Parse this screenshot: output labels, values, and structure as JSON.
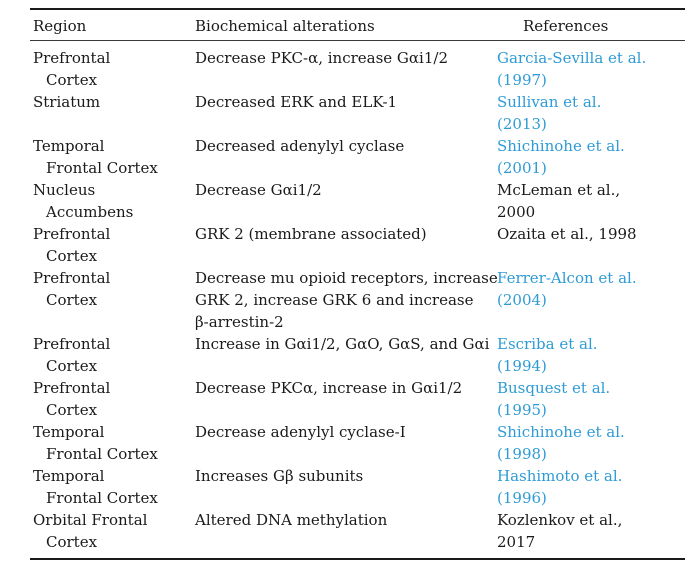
{
  "table": {
    "text_color": "#1a1a1a",
    "link_color": "#2e9bd6",
    "headers": [
      {
        "label": "Region"
      },
      {
        "label": "Biochemical alterations"
      },
      {
        "label": "References"
      }
    ],
    "rows": [
      {
        "region_lines": [
          "Prefrontal",
          "Cortex"
        ],
        "alteration_lines": [
          "Decrease PKC-α, increase Gαi1/2"
        ],
        "reference_lines": [
          "Garcia-Sevilla et al.",
          "(1997)"
        ],
        "reference_is_link": true
      },
      {
        "region_lines": [
          "Striatum"
        ],
        "alteration_lines": [
          "Decreased ERK and ELK-1"
        ],
        "reference_lines": [
          "Sullivan et al.",
          "(2013)"
        ],
        "reference_is_link": true
      },
      {
        "region_lines": [
          "Temporal",
          "Frontal Cortex"
        ],
        "alteration_lines": [
          "Decreased adenylyl cyclase"
        ],
        "reference_lines": [
          "Shichinohe et al.",
          "(2001)"
        ],
        "reference_is_link": true
      },
      {
        "region_lines": [
          "Nucleus",
          "Accumbens"
        ],
        "alteration_lines": [
          "Decrease Gαi1/2"
        ],
        "reference_lines": [
          "McLeman et al.,",
          "2000"
        ],
        "reference_is_link": false
      },
      {
        "region_lines": [
          "Prefrontal",
          "Cortex"
        ],
        "alteration_lines": [
          "GRK 2 (membrane associated)"
        ],
        "reference_lines": [
          "Ozaita et al., 1998"
        ],
        "reference_is_link": false
      },
      {
        "region_lines": [
          "Prefrontal",
          "Cortex"
        ],
        "alteration_lines": [
          "Decrease mu opioid receptors, increase",
          "GRK 2, increase GRK 6 and increase",
          "β-arrestin-2"
        ],
        "reference_lines": [
          "Ferrer-Alcon et al.",
          "(2004)"
        ],
        "reference_is_link": true
      },
      {
        "region_lines": [
          "Prefrontal",
          "Cortex"
        ],
        "alteration_lines": [
          "Increase in Gαi1/2, GαO, GαS, and Gαi"
        ],
        "reference_lines": [
          "Escriba et al.",
          "(1994)"
        ],
        "reference_is_link": true
      },
      {
        "region_lines": [
          "Prefrontal",
          "Cortex"
        ],
        "alteration_lines": [
          "Decrease PKCα, increase in Gαi1/2"
        ],
        "reference_lines": [
          "Busquest et al.",
          "(1995)"
        ],
        "reference_is_link": true
      },
      {
        "region_lines": [
          "Temporal",
          "Frontal Cortex"
        ],
        "alteration_lines": [
          "Decrease adenylyl cyclase-I"
        ],
        "reference_lines": [
          "Shichinohe et al.",
          "(1998)"
        ],
        "reference_is_link": true
      },
      {
        "region_lines": [
          "Temporal",
          "Frontal Cortex"
        ],
        "alteration_lines": [
          "Increases Gβ subunits"
        ],
        "reference_lines": [
          "Hashimoto et al.",
          "(1996)"
        ],
        "reference_is_link": true
      },
      {
        "region_lines": [
          "Orbital Frontal",
          "Cortex"
        ],
        "alteration_lines": [
          "Altered DNA methylation"
        ],
        "reference_lines": [
          "Kozlenkov et al.,",
          "2017"
        ],
        "reference_is_link": false
      }
    ]
  }
}
